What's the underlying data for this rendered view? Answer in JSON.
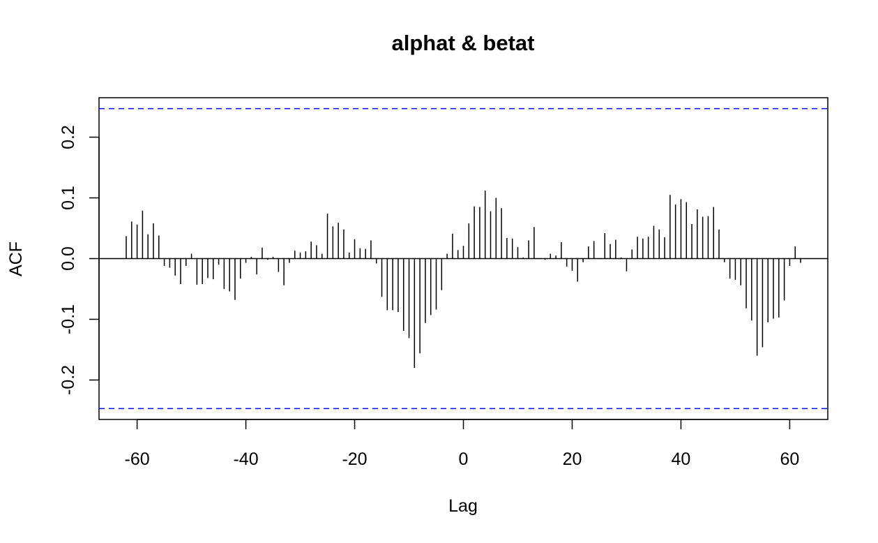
{
  "chart_data": {
    "type": "bar",
    "title": "alphat & betat",
    "xlabel": "Lag",
    "ylabel": "ACF",
    "xlim": [
      -67,
      67
    ],
    "ylim": [
      -0.265,
      0.265
    ],
    "xticks": [
      -60,
      -40,
      -20,
      0,
      20,
      40,
      60
    ],
    "yticks": [
      -0.2,
      -0.1,
      0.0,
      0.1,
      0.2
    ],
    "xtick_labels": [
      "-60",
      "-40",
      "-20",
      "0",
      "20",
      "40",
      "60"
    ],
    "ytick_labels": [
      "-0.2",
      "-0.1",
      "0.0",
      "0.1",
      "0.2"
    ],
    "confidence_bound": 0.247,
    "bound_color": "#0000ff",
    "bar_color": "#000000",
    "grid": false,
    "lags": [
      -62,
      -61,
      -60,
      -59,
      -58,
      -57,
      -56,
      -55,
      -54,
      -53,
      -52,
      -51,
      -50,
      -49,
      -48,
      -47,
      -46,
      -45,
      -44,
      -43,
      -42,
      -41,
      -40,
      -39,
      -38,
      -37,
      -36,
      -35,
      -34,
      -33,
      -32,
      -31,
      -30,
      -29,
      -28,
      -27,
      -26,
      -25,
      -24,
      -23,
      -22,
      -21,
      -20,
      -19,
      -18,
      -17,
      -16,
      -15,
      -14,
      -13,
      -12,
      -11,
      -10,
      -9,
      -8,
      -7,
      -6,
      -5,
      -4,
      -3,
      -2,
      -1,
      0,
      1,
      2,
      3,
      4,
      5,
      6,
      7,
      8,
      9,
      10,
      11,
      12,
      13,
      14,
      15,
      16,
      17,
      18,
      19,
      20,
      21,
      22,
      23,
      24,
      25,
      26,
      27,
      28,
      29,
      30,
      31,
      32,
      33,
      34,
      35,
      36,
      37,
      38,
      39,
      40,
      41,
      42,
      43,
      44,
      45,
      46,
      47,
      48,
      49,
      50,
      51,
      52,
      53,
      54,
      55,
      56,
      57,
      58,
      59,
      60,
      61,
      62
    ],
    "acf": [
      0.037,
      0.061,
      0.056,
      0.079,
      0.04,
      0.058,
      0.038,
      -0.012,
      -0.015,
      -0.028,
      -0.042,
      -0.012,
      0.008,
      -0.043,
      -0.042,
      -0.032,
      -0.034,
      -0.01,
      -0.05,
      -0.054,
      -0.068,
      -0.033,
      -0.007,
      0.003,
      -0.026,
      0.018,
      -0.002,
      0.003,
      -0.022,
      -0.044,
      -0.007,
      0.013,
      0.01,
      0.012,
      0.028,
      0.022,
      0.008,
      0.074,
      0.053,
      0.059,
      0.048,
      0.01,
      0.032,
      0.017,
      0.016,
      0.03,
      -0.008,
      -0.063,
      -0.085,
      -0.085,
      -0.088,
      -0.119,
      -0.131,
      -0.18,
      -0.156,
      -0.106,
      -0.093,
      -0.084,
      -0.052,
      0.008,
      0.041,
      0.014,
      0.021,
      0.058,
      0.086,
      0.085,
      0.112,
      0.078,
      0.1,
      0.083,
      0.034,
      0.033,
      0.019,
      0.002,
      0.03,
      0.052,
      0.0,
      -0.002,
      0.008,
      0.005,
      0.027,
      -0.013,
      -0.02,
      -0.038,
      -0.006,
      0.02,
      0.029,
      0.0,
      0.042,
      0.024,
      0.031,
      0.002,
      -0.021,
      0.015,
      0.036,
      0.033,
      0.036,
      0.054,
      0.048,
      0.035,
      0.105,
      0.089,
      0.098,
      0.093,
      0.057,
      0.081,
      0.069,
      0.07,
      0.085,
      0.048,
      -0.006,
      -0.033,
      -0.035,
      -0.044,
      -0.082,
      -0.102,
      -0.16,
      -0.146,
      -0.105,
      -0.099,
      -0.097,
      -0.069,
      -0.012,
      0.02,
      -0.007
    ]
  }
}
